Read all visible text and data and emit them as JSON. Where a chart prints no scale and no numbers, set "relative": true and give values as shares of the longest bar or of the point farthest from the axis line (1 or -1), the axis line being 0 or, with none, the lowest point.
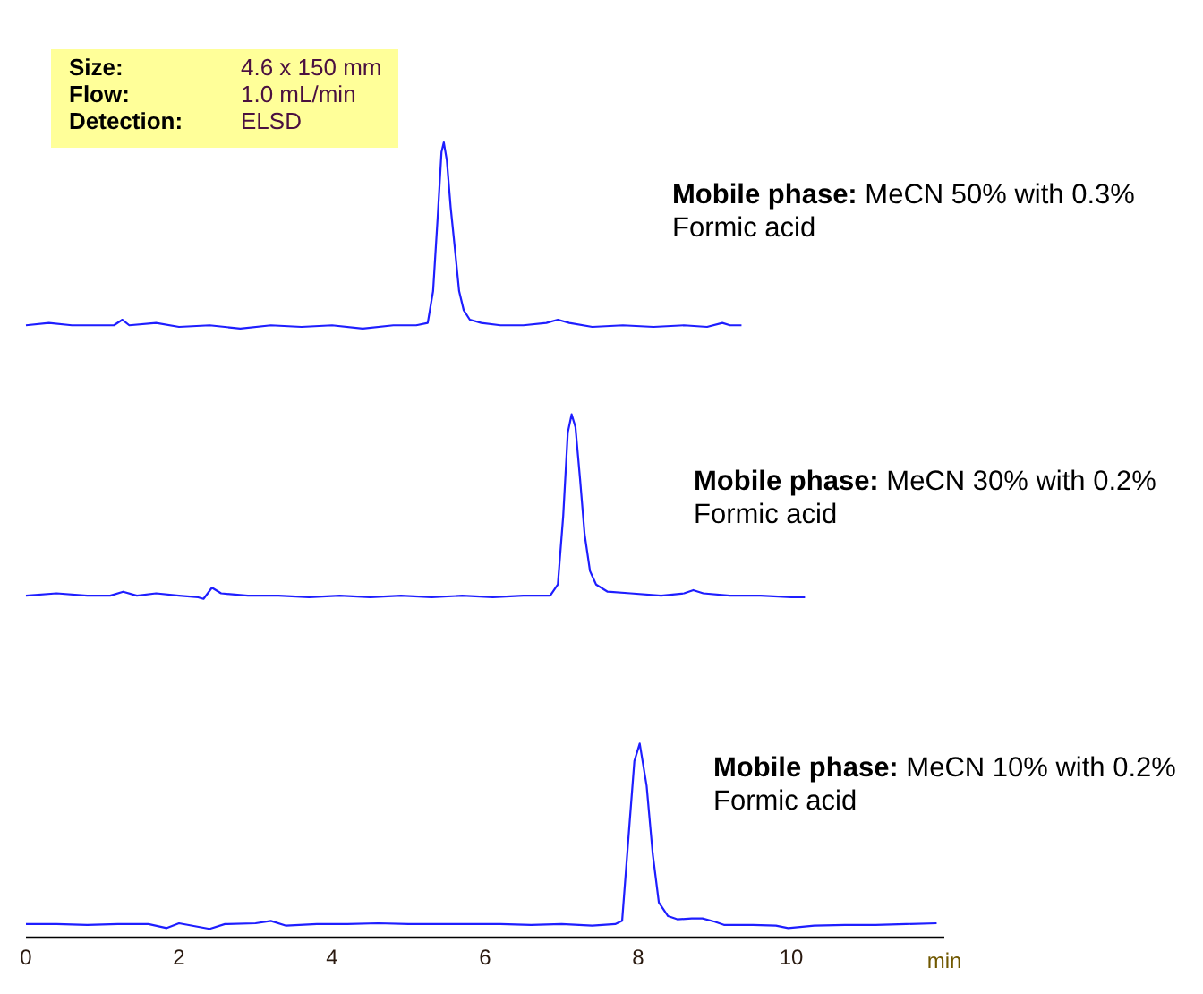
{
  "chart_data": {
    "type": "line",
    "relative": true,
    "xlim": [
      0,
      12
    ],
    "xticks": [
      0,
      2,
      4,
      6,
      8,
      10
    ],
    "xlabel": "min",
    "tick_labels": "x",
    "series": [
      {
        "color": "#1e1eff",
        "x": [
          0,
          0.3,
          0.6,
          0.9,
          1.15,
          1.26,
          1.35,
          1.7,
          2.0,
          2.4,
          2.8,
          3.2,
          3.6,
          4.0,
          4.4,
          4.8,
          5.1,
          5.25,
          5.32,
          5.38,
          5.43,
          5.46,
          5.5,
          5.55,
          5.6,
          5.66,
          5.72,
          5.8,
          5.95,
          6.2,
          6.5,
          6.8,
          6.95,
          7.1,
          7.4,
          7.8,
          8.2,
          8.6,
          8.9,
          9.1,
          9.2,
          9.35
        ],
        "values": [
          0.77,
          0.773,
          0.77,
          0.77,
          0.77,
          0.777,
          0.77,
          0.773,
          0.768,
          0.77,
          0.766,
          0.77,
          0.768,
          0.77,
          0.766,
          0.77,
          0.77,
          0.773,
          0.813,
          0.906,
          0.988,
          1.0,
          0.977,
          0.918,
          0.871,
          0.813,
          0.789,
          0.777,
          0.773,
          0.77,
          0.77,
          0.773,
          0.777,
          0.773,
          0.768,
          0.77,
          0.768,
          0.77,
          0.768,
          0.773,
          0.77,
          0.77
        ]
      },
      {
        "color": "#1e1eff",
        "x": [
          0,
          0.4,
          0.8,
          1.1,
          1.27,
          1.45,
          1.7,
          2.0,
          2.25,
          2.32,
          2.43,
          2.55,
          2.9,
          3.3,
          3.7,
          4.1,
          4.5,
          4.9,
          5.3,
          5.7,
          6.1,
          6.5,
          6.85,
          6.95,
          7.02,
          7.08,
          7.13,
          7.18,
          7.24,
          7.3,
          7.37,
          7.45,
          7.6,
          7.9,
          8.3,
          8.6,
          8.72,
          8.85,
          9.2,
          9.6,
          10.0,
          10.18
        ],
        "values": [
          0.43,
          0.433,
          0.43,
          0.43,
          0.435,
          0.43,
          0.433,
          0.43,
          0.428,
          0.426,
          0.44,
          0.433,
          0.43,
          0.43,
          0.428,
          0.43,
          0.428,
          0.43,
          0.428,
          0.43,
          0.428,
          0.43,
          0.43,
          0.444,
          0.53,
          0.635,
          0.658,
          0.642,
          0.577,
          0.507,
          0.461,
          0.444,
          0.435,
          0.433,
          0.43,
          0.433,
          0.437,
          0.433,
          0.43,
          0.43,
          0.428,
          0.428
        ]
      },
      {
        "color": "#1e1eff",
        "x": [
          0,
          0.4,
          0.8,
          1.2,
          1.6,
          1.84,
          2.0,
          2.4,
          2.6,
          3.0,
          3.2,
          3.4,
          3.8,
          4.2,
          4.6,
          5.0,
          5.4,
          5.8,
          6.2,
          6.6,
          7.0,
          7.4,
          7.7,
          7.79,
          7.87,
          7.95,
          8.02,
          8.11,
          8.19,
          8.27,
          8.39,
          8.51,
          8.7,
          8.84,
          9.0,
          9.12,
          9.5,
          9.8,
          9.96,
          10.3,
          10.7,
          11.1,
          11.5,
          11.9
        ],
        "values": [
          0.017,
          0.017,
          0.016,
          0.017,
          0.017,
          0.012,
          0.018,
          0.011,
          0.017,
          0.018,
          0.021,
          0.015,
          0.017,
          0.017,
          0.018,
          0.017,
          0.017,
          0.017,
          0.017,
          0.016,
          0.017,
          0.015,
          0.017,
          0.021,
          0.122,
          0.222,
          0.244,
          0.191,
          0.105,
          0.044,
          0.027,
          0.023,
          0.024,
          0.024,
          0.02,
          0.016,
          0.016,
          0.015,
          0.012,
          0.015,
          0.016,
          0.016,
          0.017,
          0.018
        ]
      }
    ],
    "annotations": [
      "Size: 4.6 x 150 mm",
      "Flow: 1.0 mL/min",
      "Detection: ELSD",
      "Mobile phase: MeCN 50% with 0.3% Formic acid",
      "Mobile phase: MeCN 30% with 0.2% Formic acid",
      "Mobile phase: MeCN 10% with 0.2% Formic acid"
    ]
  }
}
